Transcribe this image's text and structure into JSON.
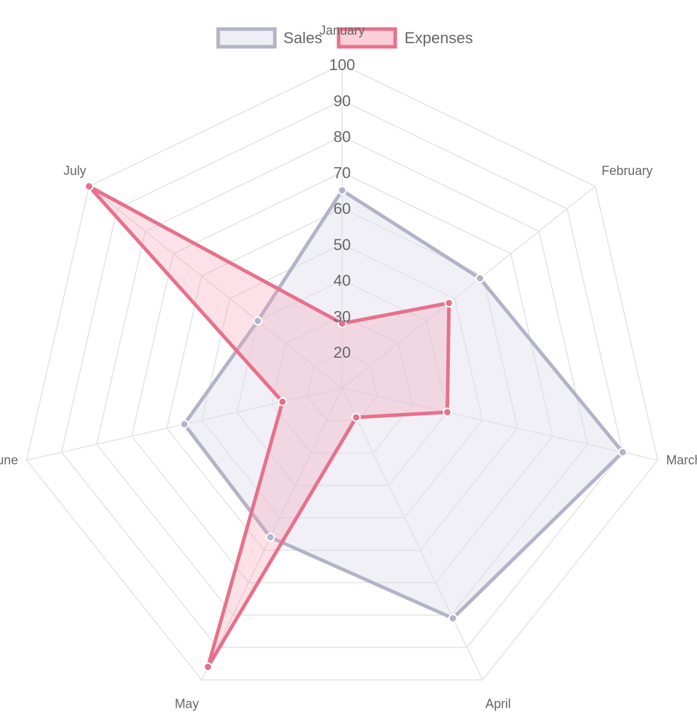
{
  "chart_data": {
    "type": "radar",
    "labels": [
      "January",
      "February",
      "March",
      "April",
      "May",
      "June",
      "July"
    ],
    "r_ticks": [
      20,
      30,
      40,
      50,
      60,
      70,
      80,
      90,
      100
    ],
    "r_range": [
      10,
      100
    ],
    "grid": true,
    "legend": {
      "position": "top",
      "items": [
        "Sales",
        "Expenses"
      ]
    },
    "series": [
      {
        "name": "Sales",
        "values": [
          65,
          59,
          90,
          81,
          56,
          55,
          40
        ],
        "color": "#b3b3c8",
        "fill": "rgba(222,222,234,0.45)"
      },
      {
        "name": "Expenses",
        "values": [
          28,
          48,
          40,
          19,
          96,
          27,
          100
        ],
        "color": "#e8708c",
        "fill": "rgba(245,160,180,0.30)"
      }
    ]
  }
}
